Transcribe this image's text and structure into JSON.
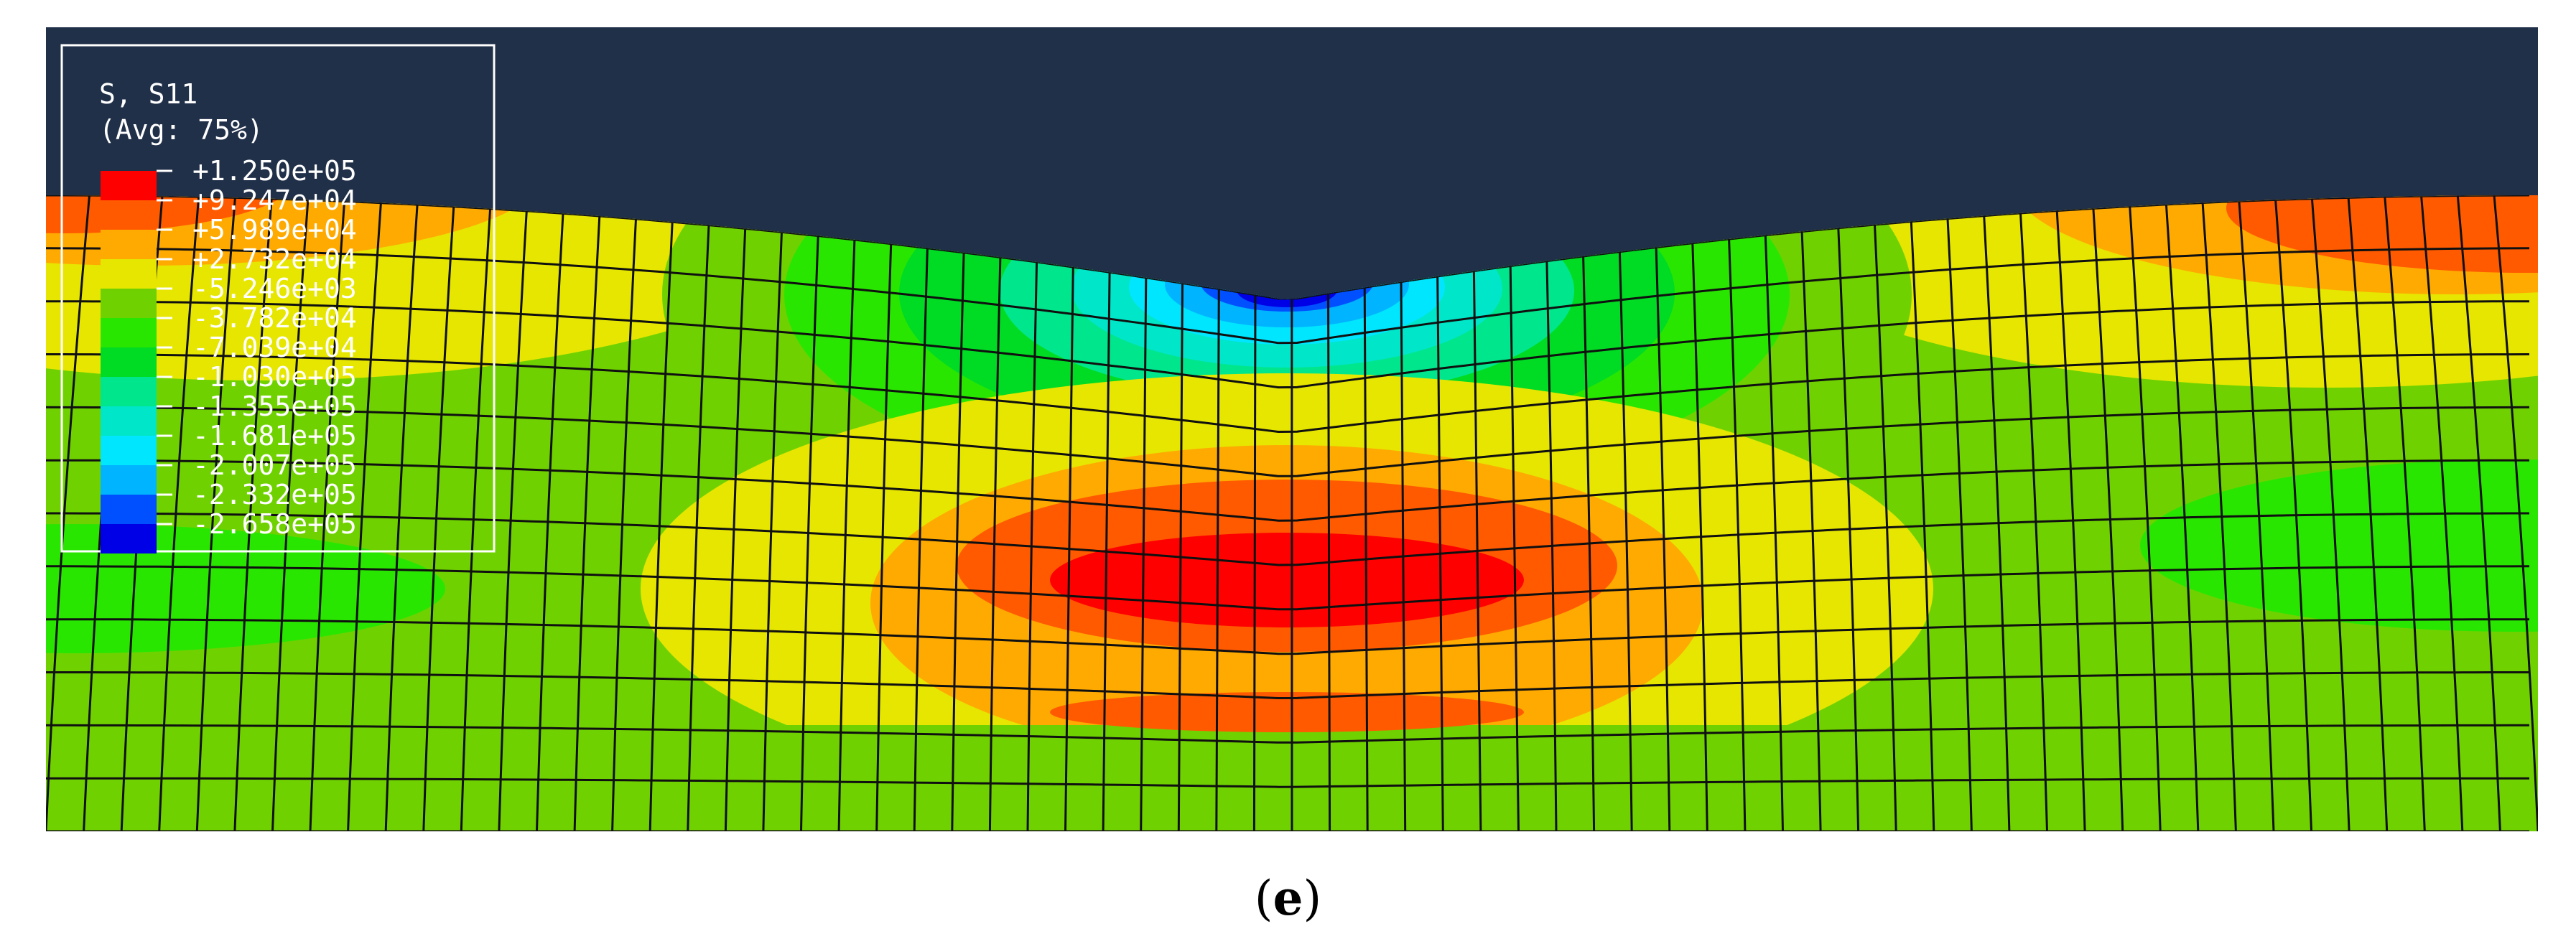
{
  "colors": {
    "background": "#213049",
    "mesh_line": "#101010",
    "legend_border": "#ffffff",
    "legend_text": "#ffffff",
    "mesh_base": "#6fd200"
  },
  "legend": {
    "title": "S, S11",
    "subtitle": "(Avg: 75%)",
    "levels": [
      {
        "label": "+1.250e+05",
        "value": 125000,
        "color": "#ff0000"
      },
      {
        "label": "+9.247e+04",
        "value": 92470,
        "color": "#ff5a00"
      },
      {
        "label": "+5.989e+04",
        "value": 59890,
        "color": "#ffaa00"
      },
      {
        "label": "+2.732e+04",
        "value": 27320,
        "color": "#e6e600"
      },
      {
        "label": "-5.246e+03",
        "value": -5246,
        "color": "#6fd200"
      },
      {
        "label": "-3.782e+04",
        "value": -37820,
        "color": "#29e600"
      },
      {
        "label": "-7.039e+04",
        "value": -70390,
        "color": "#00dc23"
      },
      {
        "label": "-1.030e+05",
        "value": -103000,
        "color": "#00e68c"
      },
      {
        "label": "-1.355e+05",
        "value": -135500,
        "color": "#00e6c8"
      },
      {
        "label": "-1.681e+05",
        "value": -168100,
        "color": "#00e6ff"
      },
      {
        "label": "-2.007e+05",
        "value": -200700,
        "color": "#00b4ff"
      },
      {
        "label": "-2.332e+05",
        "value": -233200,
        "color": "#0050ff"
      },
      {
        "label": "-2.658e+05",
        "value": -265800,
        "color": "#0000e6"
      }
    ]
  },
  "caption": {
    "open": "(",
    "letter": "e",
    "close": ")"
  }
}
